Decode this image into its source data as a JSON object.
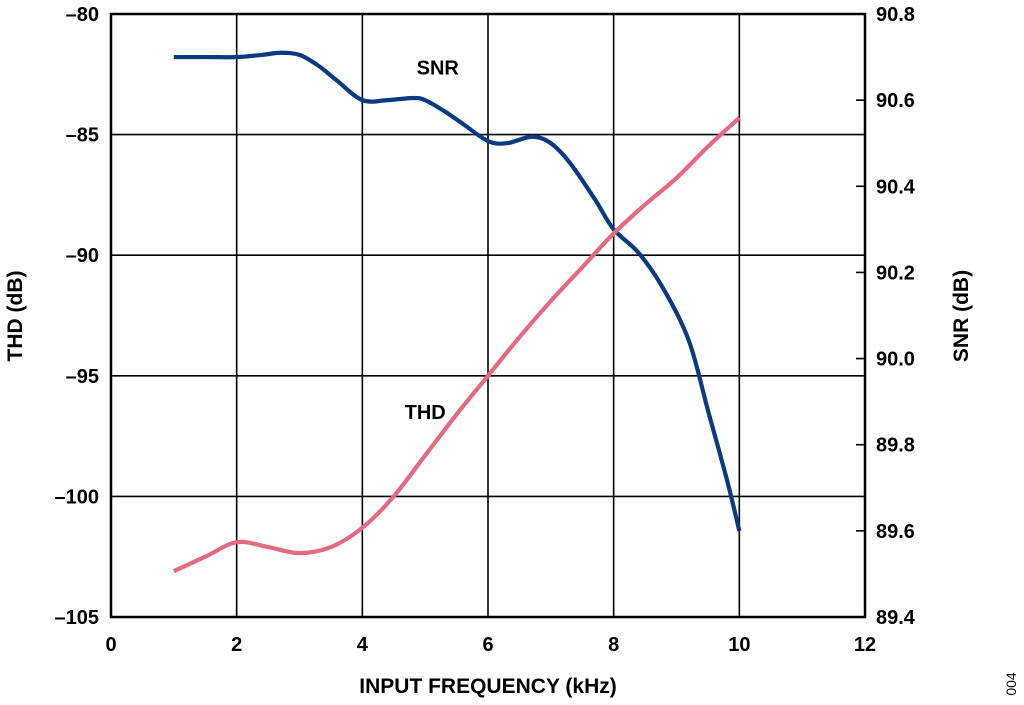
{
  "figure_id": "004",
  "chart_data": {
    "type": "line",
    "xlabel": "INPUT FREQUENCY (kHz)",
    "ylabel_left": "THD (dB)",
    "ylabel_right": "SNR (dB)",
    "xlim": [
      0,
      12
    ],
    "ylim_left": [
      -105,
      -80
    ],
    "ylim_right": [
      89.4,
      90.8
    ],
    "x_ticks": [
      0,
      2,
      4,
      6,
      8,
      10,
      12
    ],
    "x_tick_labels": [
      "0",
      "2",
      "4",
      "6",
      "8",
      "10",
      "12"
    ],
    "y_left_ticks": [
      -80,
      -85,
      -90,
      -95,
      -100,
      -105
    ],
    "y_left_tick_labels": [
      "–80",
      "–85",
      "–90",
      "–95",
      "–100",
      "–105"
    ],
    "y_right_ticks": [
      90.8,
      90.6,
      90.4,
      90.2,
      90.0,
      89.8,
      89.6,
      89.4
    ],
    "y_right_tick_labels": [
      "90.8",
      "90.6",
      "90.4",
      "90.2",
      "90.0",
      "89.8",
      "89.6",
      "89.4"
    ],
    "grid": true,
    "series": [
      {
        "name": "SNR",
        "axis": "right",
        "color": "#0b3a80",
        "label_at": [
          5.2,
          90.66
        ],
        "points": [
          [
            1,
            90.7
          ],
          [
            1.5,
            90.7
          ],
          [
            2,
            90.7
          ],
          [
            2.4,
            90.705
          ],
          [
            2.7,
            90.71
          ],
          [
            3.0,
            90.705
          ],
          [
            3.3,
            90.68
          ],
          [
            3.6,
            90.645
          ],
          [
            4.0,
            90.6
          ],
          [
            4.4,
            90.6
          ],
          [
            4.8,
            90.605
          ],
          [
            5.0,
            90.6
          ],
          [
            5.3,
            90.575
          ],
          [
            5.6,
            90.545
          ],
          [
            6.0,
            90.505
          ],
          [
            6.3,
            90.5
          ],
          [
            6.7,
            90.515
          ],
          [
            7.0,
            90.5
          ],
          [
            7.3,
            90.455
          ],
          [
            7.7,
            90.37
          ],
          [
            8.0,
            90.3
          ],
          [
            8.4,
            90.245
          ],
          [
            8.8,
            90.16
          ],
          [
            9.2,
            90.04
          ],
          [
            9.5,
            89.88
          ],
          [
            9.8,
            89.72
          ],
          [
            10.0,
            89.6
          ]
        ]
      },
      {
        "name": "THD",
        "axis": "left",
        "color": "#e36a80",
        "label_at": [
          5.0,
          -96.8
        ],
        "points": [
          [
            1,
            -103.1
          ],
          [
            1.5,
            -102.5
          ],
          [
            2,
            -101.9
          ],
          [
            2.5,
            -102.1
          ],
          [
            3.0,
            -102.35
          ],
          [
            3.5,
            -102.1
          ],
          [
            4.0,
            -101.3
          ],
          [
            4.5,
            -100.0
          ],
          [
            5.0,
            -98.3
          ],
          [
            5.5,
            -96.6
          ],
          [
            6.0,
            -95.0
          ],
          [
            6.5,
            -93.4
          ],
          [
            7.0,
            -91.9
          ],
          [
            7.5,
            -90.5
          ],
          [
            8.0,
            -89.1
          ],
          [
            8.5,
            -87.9
          ],
          [
            9.0,
            -86.8
          ],
          [
            9.5,
            -85.5
          ],
          [
            10.0,
            -84.3
          ]
        ]
      }
    ]
  }
}
